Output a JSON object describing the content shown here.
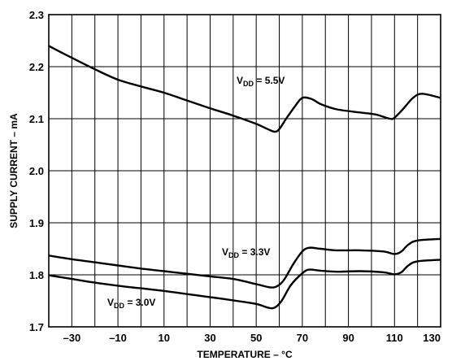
{
  "chart_data": {
    "type": "line",
    "title": "",
    "xlabel": "TEMPERATURE – °C",
    "ylabel": "SUPPLY CURRENT – mA",
    "xlim": [
      -40,
      130
    ],
    "ylim": [
      1.7,
      2.3
    ],
    "x_ticks": [
      -30,
      -10,
      10,
      30,
      50,
      70,
      90,
      110,
      130
    ],
    "x_tick_labels": [
      "–30",
      "–10",
      "10",
      "30",
      "50",
      "70",
      "90",
      "110",
      "130"
    ],
    "y_ticks": [
      1.7,
      1.8,
      1.9,
      2.0,
      2.1,
      2.2,
      2.3
    ],
    "y_tick_labels": [
      "1.7",
      "1.8",
      "1.9",
      "2.0",
      "2.1",
      "2.2",
      "2.3"
    ],
    "grid": true,
    "series": [
      {
        "label": {
          "base": "V",
          "sub": "DD",
          "rest": " = 5.5V"
        },
        "points": [
          [
            -40,
            2.24
          ],
          [
            -30,
            2.217
          ],
          [
            -20,
            2.195
          ],
          [
            -10,
            2.175
          ],
          [
            0,
            2.162
          ],
          [
            10,
            2.15
          ],
          [
            20,
            2.135
          ],
          [
            30,
            2.12
          ],
          [
            40,
            2.106
          ],
          [
            50,
            2.09
          ],
          [
            55,
            2.08
          ],
          [
            58,
            2.075
          ],
          [
            60,
            2.08
          ],
          [
            63,
            2.1
          ],
          [
            67,
            2.125
          ],
          [
            70,
            2.14
          ],
          [
            74,
            2.138
          ],
          [
            78,
            2.128
          ],
          [
            85,
            2.118
          ],
          [
            95,
            2.112
          ],
          [
            102,
            2.108
          ],
          [
            108,
            2.1
          ],
          [
            110,
            2.102
          ],
          [
            114,
            2.12
          ],
          [
            118,
            2.14
          ],
          [
            122,
            2.148
          ],
          [
            130,
            2.14
          ]
        ]
      },
      {
        "label": {
          "base": "V",
          "sub": "DD",
          "rest": " = 3.3V"
        },
        "points": [
          [
            -40,
            1.837
          ],
          [
            -30,
            1.83
          ],
          [
            -20,
            1.824
          ],
          [
            -10,
            1.818
          ],
          [
            0,
            1.812
          ],
          [
            10,
            1.807
          ],
          [
            20,
            1.802
          ],
          [
            30,
            1.797
          ],
          [
            40,
            1.792
          ],
          [
            50,
            1.782
          ],
          [
            56,
            1.776
          ],
          [
            59,
            1.778
          ],
          [
            62,
            1.79
          ],
          [
            66,
            1.82
          ],
          [
            70,
            1.845
          ],
          [
            73,
            1.852
          ],
          [
            78,
            1.85
          ],
          [
            85,
            1.847
          ],
          [
            95,
            1.847
          ],
          [
            105,
            1.845
          ],
          [
            110,
            1.84
          ],
          [
            113,
            1.845
          ],
          [
            116,
            1.858
          ],
          [
            120,
            1.866
          ],
          [
            130,
            1.869
          ]
        ]
      },
      {
        "label": {
          "base": "V",
          "sub": "DD",
          "rest": " = 3.0V"
        },
        "points": [
          [
            -40,
            1.799
          ],
          [
            -30,
            1.792
          ],
          [
            -20,
            1.785
          ],
          [
            -10,
            1.779
          ],
          [
            0,
            1.774
          ],
          [
            10,
            1.769
          ],
          [
            20,
            1.763
          ],
          [
            30,
            1.757
          ],
          [
            40,
            1.751
          ],
          [
            50,
            1.744
          ],
          [
            55,
            1.737
          ],
          [
            58,
            1.737
          ],
          [
            61,
            1.75
          ],
          [
            65,
            1.78
          ],
          [
            70,
            1.803
          ],
          [
            73,
            1.81
          ],
          [
            78,
            1.808
          ],
          [
            85,
            1.806
          ],
          [
            95,
            1.807
          ],
          [
            105,
            1.805
          ],
          [
            110,
            1.801
          ],
          [
            113,
            1.805
          ],
          [
            116,
            1.818
          ],
          [
            120,
            1.826
          ],
          [
            130,
            1.829
          ]
        ]
      }
    ]
  }
}
